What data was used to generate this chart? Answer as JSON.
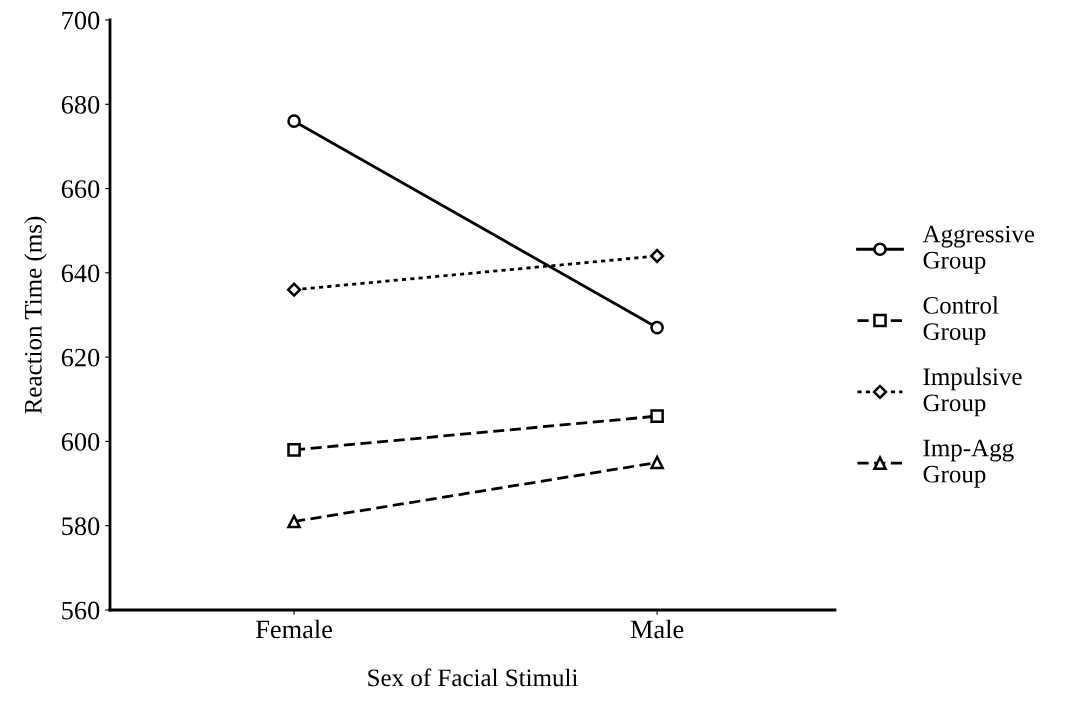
{
  "chart_data": {
    "type": "line",
    "xlabel": "Sex of Facial Stimuli",
    "ylabel": "Reaction Time (ms)",
    "categories": [
      "Female",
      "Male"
    ],
    "series": [
      {
        "name": "Aggressive\nGroup",
        "color": "#000000",
        "values": [
          676,
          627
        ],
        "marker": "circle",
        "line_style": "solid"
      },
      {
        "name": "Control\nGroup",
        "color": "#000000",
        "values": [
          598,
          606
        ],
        "marker": "square",
        "line_style": "dashed"
      },
      {
        "name": "Impulsive\nGroup",
        "color": "#000000",
        "values": [
          636,
          644
        ],
        "marker": "diamond",
        "line_style": "dotted"
      },
      {
        "name": "Imp-Agg\nGroup",
        "color": "#000000",
        "values": [
          581,
          595
        ],
        "marker": "triangle",
        "line_style": "dashed"
      }
    ],
    "ylim": [
      560,
      700
    ],
    "yticks": [
      560,
      580,
      600,
      620,
      640,
      660,
      680,
      700
    ],
    "grid": false,
    "legend": "right"
  }
}
